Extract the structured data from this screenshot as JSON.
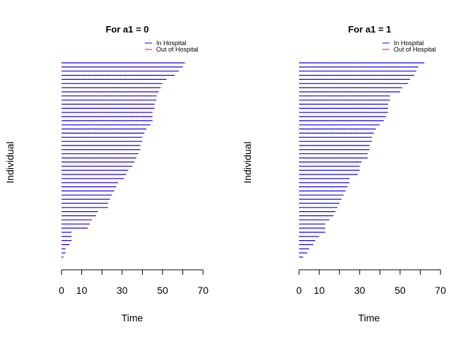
{
  "chart_data": [
    {
      "type": "line",
      "title": "For a1 = 0",
      "xlabel": "Time",
      "ylabel": "Individual",
      "xlim": [
        0,
        70
      ],
      "xticks": [
        0,
        10,
        20,
        30,
        40,
        50,
        60,
        70
      ],
      "xtick_labels": [
        "0",
        "10",
        "",
        "30",
        "",
        "50",
        "",
        "70"
      ],
      "legend": {
        "position": "top-right",
        "entries": [
          {
            "label": "In Hospital",
            "color": "#0000ff"
          },
          {
            "label": "Out of Hospital",
            "color": "#ff0000"
          }
        ]
      },
      "n_individuals": 48,
      "follow_up_end": [
        1,
        2,
        2,
        4,
        5,
        5,
        5,
        13,
        14,
        15,
        17,
        18,
        23,
        23,
        24,
        25,
        26,
        27,
        28,
        31,
        32,
        33,
        35,
        36,
        37,
        38,
        39,
        39,
        40,
        40,
        41,
        42,
        44,
        45,
        45,
        45,
        46,
        46,
        47,
        47,
        48,
        49,
        50,
        52,
        56,
        58,
        60,
        61
      ]
    },
    {
      "type": "line",
      "title": "For a1 = 1",
      "xlabel": "Time",
      "ylabel": "Individual",
      "xlim": [
        0,
        70
      ],
      "xticks": [
        0,
        10,
        20,
        30,
        40,
        50,
        60,
        70
      ],
      "xtick_labels": [
        "0",
        "10",
        "",
        "30",
        "",
        "50",
        "",
        "70"
      ],
      "legend": {
        "position": "top-right",
        "entries": [
          {
            "label": "In Hospital",
            "color": "#0000ff"
          },
          {
            "label": "Out of Hospital",
            "color": "#ff0000"
          }
        ]
      },
      "n_individuals": 48,
      "follow_up_end": [
        2,
        4,
        5,
        7,
        8,
        10,
        13,
        13,
        13,
        15,
        17,
        18,
        19,
        20,
        21,
        22,
        23,
        24,
        25,
        25,
        29,
        30,
        30,
        31,
        34,
        34,
        35,
        35,
        36,
        36,
        37,
        38,
        40,
        42,
        43,
        44,
        44,
        44,
        45,
        45,
        50,
        51,
        54,
        55,
        57,
        58,
        59,
        62
      ]
    }
  ]
}
